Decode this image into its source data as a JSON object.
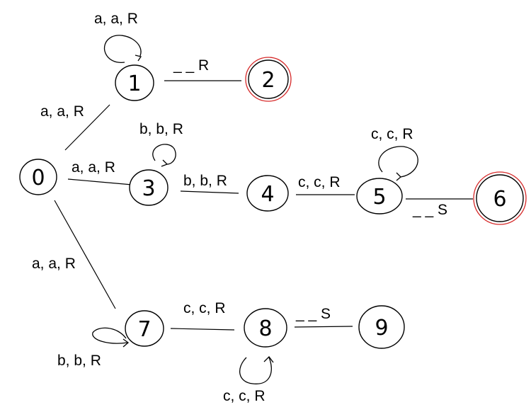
{
  "diagram": {
    "type": "turing-machine-state-diagram",
    "states": [
      {
        "id": "0",
        "label": "0",
        "accepting": false
      },
      {
        "id": "1",
        "label": "1",
        "accepting": false
      },
      {
        "id": "2",
        "label": "2",
        "accepting": true
      },
      {
        "id": "3",
        "label": "3",
        "accepting": false
      },
      {
        "id": "4",
        "label": "4",
        "accepting": false
      },
      {
        "id": "5",
        "label": "5",
        "accepting": false
      },
      {
        "id": "6",
        "label": "6",
        "accepting": true
      },
      {
        "id": "7",
        "label": "7",
        "accepting": false
      },
      {
        "id": "8",
        "label": "8",
        "accepting": false
      },
      {
        "id": "9",
        "label": "9",
        "accepting": false
      }
    ],
    "transitions": [
      {
        "id": "t0-1",
        "from": "0",
        "to": "1",
        "label": "a, a, R"
      },
      {
        "id": "t0-3",
        "from": "0",
        "to": "3",
        "label": "a, a, R"
      },
      {
        "id": "t0-7",
        "from": "0",
        "to": "7",
        "label": "a, a, R"
      },
      {
        "id": "t1-1",
        "from": "1",
        "to": "1",
        "label": "a, a, R"
      },
      {
        "id": "t1-2",
        "from": "1",
        "to": "2",
        "label": "_ _ R"
      },
      {
        "id": "t3-3",
        "from": "3",
        "to": "3",
        "label": "b, b, R"
      },
      {
        "id": "t3-4",
        "from": "3",
        "to": "4",
        "label": "b, b, R"
      },
      {
        "id": "t4-5",
        "from": "4",
        "to": "5",
        "label": "c, c, R"
      },
      {
        "id": "t5-5",
        "from": "5",
        "to": "5",
        "label": "c, c, R"
      },
      {
        "id": "t5-6",
        "from": "5",
        "to": "6",
        "label": "_ _ S"
      },
      {
        "id": "t7-7",
        "from": "7",
        "to": "7",
        "label": "b, b, R"
      },
      {
        "id": "t7-8",
        "from": "7",
        "to": "8",
        "label": "c, c, R"
      },
      {
        "id": "t8-8",
        "from": "8",
        "to": "8",
        "label": "c, c, R"
      },
      {
        "id": "t8-9",
        "from": "8",
        "to": "9",
        "label": "_ _ S"
      }
    ],
    "colors": {
      "stroke": "#000000",
      "accept_ring": "#d62828",
      "background": "#ffffff"
    }
  }
}
